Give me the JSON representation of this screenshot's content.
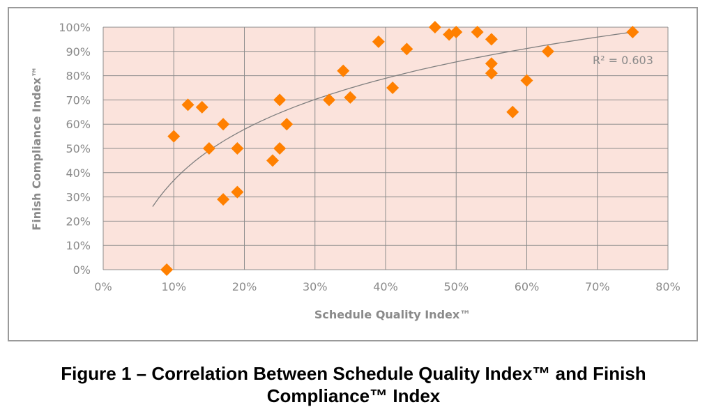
{
  "caption": {
    "line1": "Figure 1 – Correlation Between Schedule Quality Index™ and Finish",
    "line2": "Compliance™ Index"
  },
  "chart_data": {
    "type": "scatter",
    "title": "",
    "xlabel": "Schedule Quality Index™",
    "ylabel": "Finish Compliance Index™",
    "xlim": [
      0,
      80
    ],
    "ylim": [
      0,
      100
    ],
    "x_ticks": [
      "0%",
      "10%",
      "20%",
      "30%",
      "40%",
      "50%",
      "60%",
      "70%",
      "80%"
    ],
    "y_ticks": [
      "0%",
      "10%",
      "20%",
      "30%",
      "40%",
      "50%",
      "60%",
      "70%",
      "80%",
      "90%",
      "100%"
    ],
    "grid": true,
    "marker": "diamond",
    "colors": {
      "marker": "#ff8000",
      "plot_background": "#fbe3dc",
      "grid": "#8c8c8c",
      "trendline": "#7f7f7f"
    },
    "points": [
      {
        "x": 9,
        "y": 0
      },
      {
        "x": 10,
        "y": 55
      },
      {
        "x": 12,
        "y": 68
      },
      {
        "x": 14,
        "y": 67
      },
      {
        "x": 15,
        "y": 50
      },
      {
        "x": 17,
        "y": 60
      },
      {
        "x": 17,
        "y": 29
      },
      {
        "x": 19,
        "y": 50
      },
      {
        "x": 19,
        "y": 32
      },
      {
        "x": 24,
        "y": 45
      },
      {
        "x": 25,
        "y": 70
      },
      {
        "x": 25,
        "y": 50
      },
      {
        "x": 26,
        "y": 60
      },
      {
        "x": 32,
        "y": 70
      },
      {
        "x": 34,
        "y": 82
      },
      {
        "x": 35,
        "y": 71
      },
      {
        "x": 39,
        "y": 94
      },
      {
        "x": 41,
        "y": 75
      },
      {
        "x": 43,
        "y": 91
      },
      {
        "x": 47,
        "y": 100
      },
      {
        "x": 49,
        "y": 97
      },
      {
        "x": 50,
        "y": 98
      },
      {
        "x": 53,
        "y": 98
      },
      {
        "x": 55,
        "y": 95
      },
      {
        "x": 55,
        "y": 85
      },
      {
        "x": 55,
        "y": 81
      },
      {
        "x": 58,
        "y": 65
      },
      {
        "x": 60,
        "y": 78
      },
      {
        "x": 63,
        "y": 90
      },
      {
        "x": 75,
        "y": 98
      }
    ],
    "trendline": {
      "type": "logarithmic",
      "x_range": [
        7,
        75
      ],
      "y_at_start": 26,
      "y_at_end": 98,
      "label": "R² = 0.603"
    }
  }
}
